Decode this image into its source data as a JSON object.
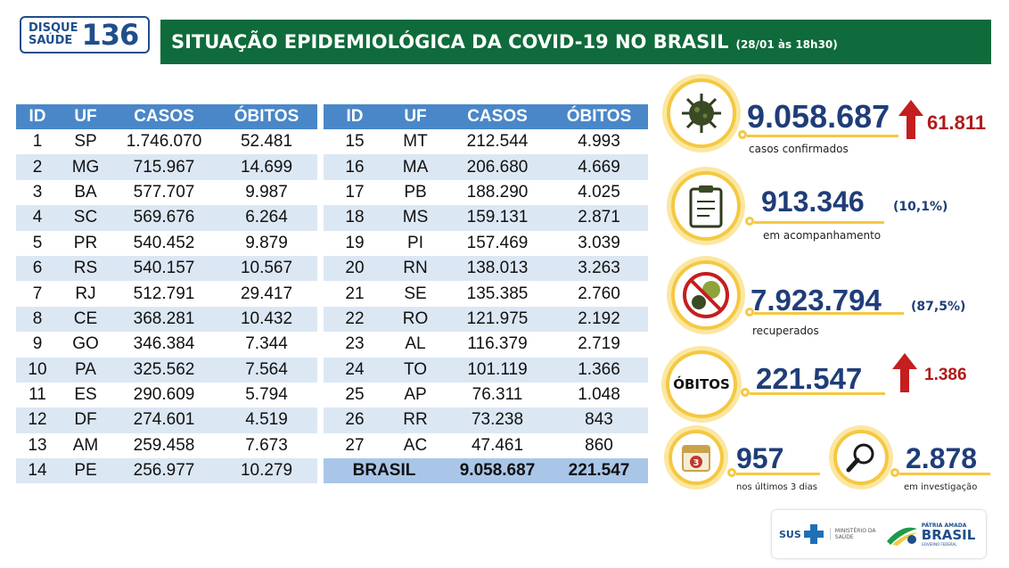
{
  "logo": {
    "line1": "DISQUE",
    "line2": "SAÚDE",
    "number": "136"
  },
  "title": {
    "main": "SITUAÇÃO EPIDEMIOLÓGICA DA COVID-19 NO BRASIL",
    "sub": "(28/01 às 18h30)"
  },
  "table_headers": [
    "ID",
    "UF",
    "CASOS",
    "ÓBITOS"
  ],
  "table_left": [
    [
      "1",
      "SP",
      "1.746.070",
      "52.481"
    ],
    [
      "2",
      "MG",
      "715.967",
      "14.699"
    ],
    [
      "3",
      "BA",
      "577.707",
      "9.987"
    ],
    [
      "4",
      "SC",
      "569.676",
      "6.264"
    ],
    [
      "5",
      "PR",
      "540.452",
      "9.879"
    ],
    [
      "6",
      "RS",
      "540.157",
      "10.567"
    ],
    [
      "7",
      "RJ",
      "512.791",
      "29.417"
    ],
    [
      "8",
      "CE",
      "368.281",
      "10.432"
    ],
    [
      "9",
      "GO",
      "346.384",
      "7.344"
    ],
    [
      "10",
      "PA",
      "325.562",
      "7.564"
    ],
    [
      "11",
      "ES",
      "290.609",
      "5.794"
    ],
    [
      "12",
      "DF",
      "274.601",
      "4.519"
    ],
    [
      "13",
      "AM",
      "259.458",
      "7.673"
    ],
    [
      "14",
      "PE",
      "256.977",
      "10.279"
    ]
  ],
  "table_right": [
    [
      "15",
      "MT",
      "212.544",
      "4.993"
    ],
    [
      "16",
      "MA",
      "206.680",
      "4.669"
    ],
    [
      "17",
      "PB",
      "188.290",
      "4.025"
    ],
    [
      "18",
      "MS",
      "159.131",
      "2.871"
    ],
    [
      "19",
      "PI",
      "157.469",
      "3.039"
    ],
    [
      "20",
      "RN",
      "138.013",
      "3.263"
    ],
    [
      "21",
      "SE",
      "135.385",
      "2.760"
    ],
    [
      "22",
      "RO",
      "121.975",
      "2.192"
    ],
    [
      "23",
      "AL",
      "116.379",
      "2.719"
    ],
    [
      "24",
      "TO",
      "101.119",
      "1.366"
    ],
    [
      "25",
      "AP",
      "76.311",
      "1.048"
    ],
    [
      "26",
      "RR",
      "73.238",
      "843"
    ],
    [
      "27",
      "AC",
      "47.461",
      "860"
    ]
  ],
  "total": {
    "label": "BRASIL",
    "casos": "9.058.687",
    "obitos": "221.547"
  },
  "stats": {
    "confirmados": {
      "value": "9.058.687",
      "delta": "61.811",
      "label": "casos confirmados"
    },
    "acompanhamento": {
      "value": "913.346",
      "pct": "(10,1%)",
      "label": "em acompanhamento"
    },
    "recuperados": {
      "value": "7.923.794",
      "pct": "(87,5%)",
      "label": "recuperados"
    },
    "obitos": {
      "word": "ÓBITOS",
      "value": "221.547",
      "delta": "1.386"
    },
    "ultimos3": {
      "value": "957",
      "label": "nos últimos 3 dias",
      "cal": "3"
    },
    "investigacao": {
      "value": "2.878",
      "label": "em investigação"
    }
  },
  "footer": {
    "sus": "SUS",
    "ministerio": "MINISTÉRIO DA SAÚDE",
    "patria_small": "PÁTRIA AMADA",
    "patria_big": "BRASIL",
    "patria_gov": "GOVERNO FEDERAL"
  },
  "icons": [
    "virus-icon",
    "clipboard-icon",
    "no-virus-icon",
    "calendar-icon",
    "magnifier-icon",
    "up-arrow-icon"
  ],
  "colors": {
    "title_bg": "#0f6b3b",
    "header_bg": "#4a87c8",
    "row_alt": "#dce7f4",
    "total_bg": "#a9c6e8",
    "accent": "#f5c842",
    "number": "#1f3d78",
    "delta": "#b01a1a"
  }
}
